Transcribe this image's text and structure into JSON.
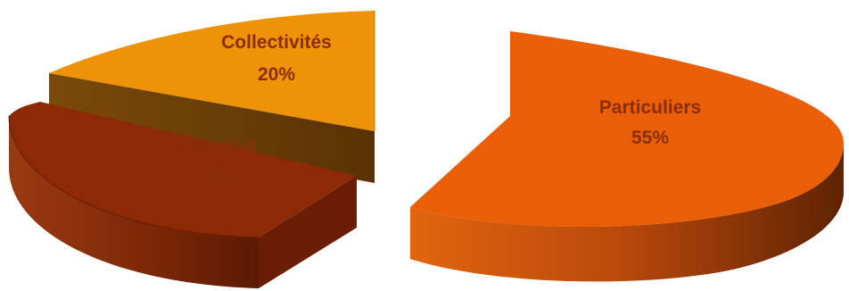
{
  "chart_data": {
    "type": "pie",
    "style": "3d-exploded",
    "title": "",
    "legend": "none",
    "slices": [
      {
        "label": "Particuliers",
        "value": 55,
        "value_label": "55%",
        "color": "#ea5e05"
      },
      {
        "label": "Mécénat",
        "value": 25,
        "value_label": "25%",
        "color": "#8c2a07"
      },
      {
        "label": "Collectivités",
        "value": 20,
        "value_label": "20%",
        "color": "#ee9207"
      }
    ]
  },
  "colors": {
    "label_text": "#8b2e08",
    "background": "#ffffff"
  }
}
